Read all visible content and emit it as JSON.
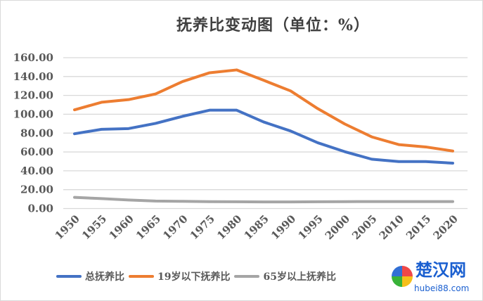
{
  "chart_data": {
    "type": "line",
    "title": "抚养比变动图（单位：%）",
    "xlabel": "",
    "ylabel": "",
    "x": [
      "1950",
      "1955",
      "1960",
      "1965",
      "1970",
      "1975",
      "1980",
      "1985",
      "1990",
      "1995",
      "2000",
      "2005",
      "2010",
      "2015",
      "2020"
    ],
    "ylim": [
      0,
      160
    ],
    "yticks": [
      "0.00",
      "20.00",
      "40.00",
      "60.00",
      "80.00",
      "100.00",
      "120.00",
      "140.00",
      "160.00"
    ],
    "grid": true,
    "legend_position": "bottom",
    "series": [
      {
        "name": "总抚养比",
        "color": "#4472c4",
        "values": [
          79.3,
          84.0,
          84.8,
          90.3,
          97.8,
          104.3,
          104.3,
          91.8,
          82.2,
          69.8,
          60.3,
          52.3,
          49.8,
          49.8,
          48.1
        ]
      },
      {
        "name": "19岁以下抚养比",
        "color": "#ed7d31",
        "values": [
          104.7,
          112.7,
          115.5,
          121.5,
          134.7,
          144.0,
          147.0,
          136.0,
          124.7,
          106.0,
          89.7,
          76.0,
          67.8,
          65.3,
          61.0
        ]
      },
      {
        "name": "65岁以上抚养比",
        "color": "#a5a5a5",
        "values": [
          11.8,
          10.5,
          9.0,
          7.9,
          7.6,
          7.3,
          7.2,
          7.0,
          7.0,
          7.2,
          7.3,
          7.4,
          7.4,
          7.4,
          7.4
        ]
      }
    ]
  },
  "watermark": {
    "name": "楚汉网",
    "url": "hubei88.com"
  }
}
